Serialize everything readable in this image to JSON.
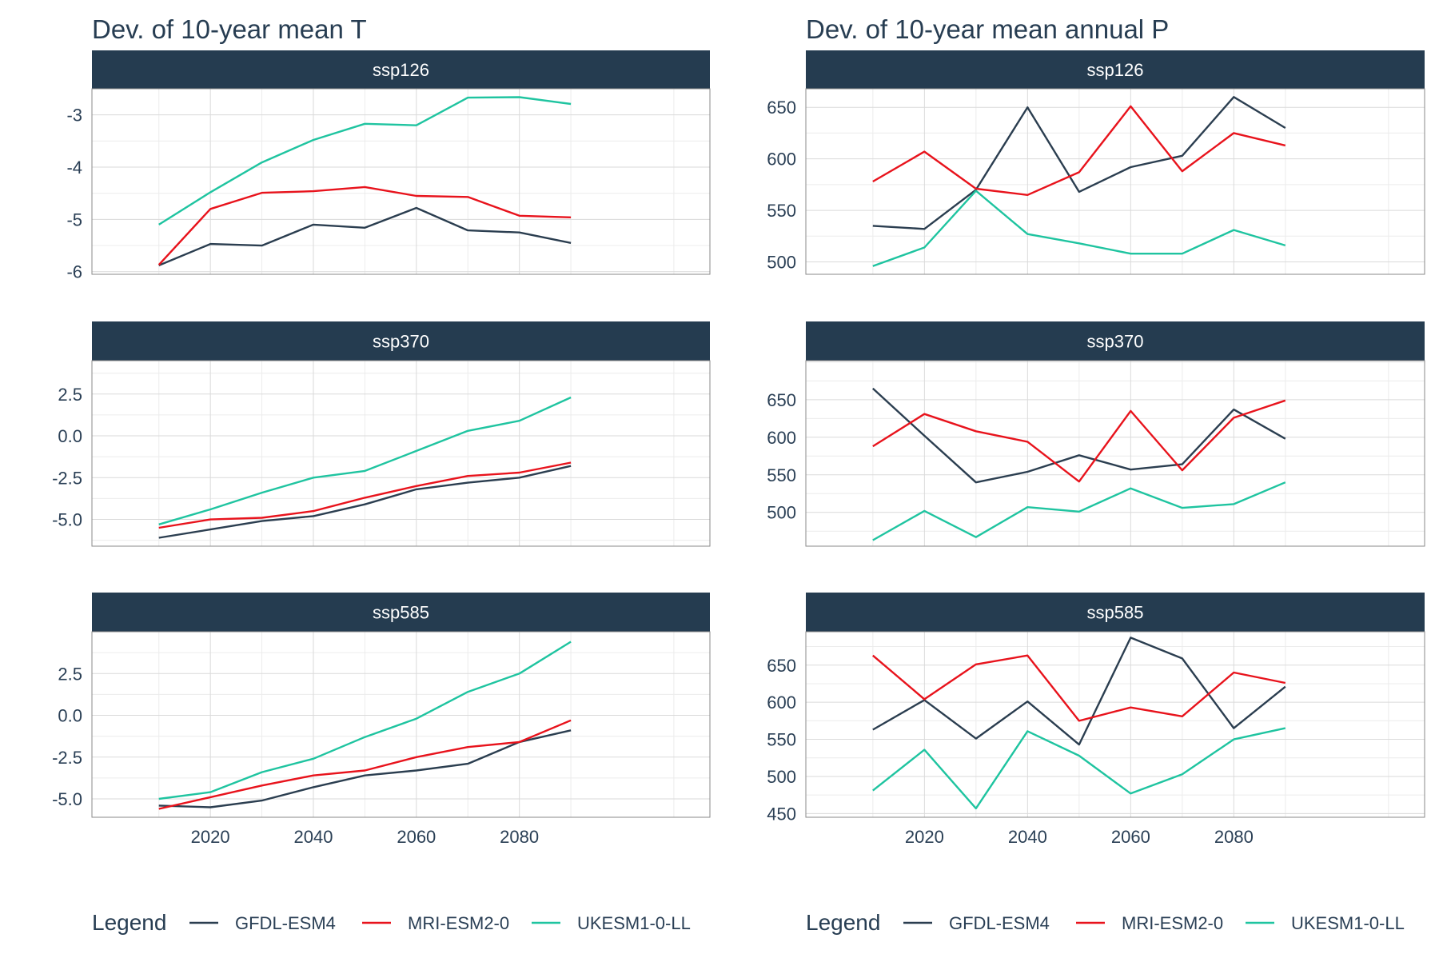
{
  "colors": {
    "GFDL-ESM4": "#2b3e50",
    "MRI-ESM2-0": "#e8131c",
    "UKESM1-0-LL": "#1fc4a0",
    "strip": "#253c50",
    "text": "#273d52"
  },
  "legend": {
    "title": "Legend",
    "items": [
      "GFDL-ESM4",
      "MRI-ESM2-0",
      "UKESM1-0-LL"
    ]
  },
  "chart_data": [
    {
      "type": "line",
      "title": "Dev. of 10-year mean T",
      "x_ticks": [
        2020,
        2040,
        2060,
        2080
      ],
      "x": [
        2010,
        2020,
        2030,
        2040,
        2050,
        2060,
        2070,
        2080,
        2090
      ],
      "xlim": [
        1997,
        2117
      ],
      "panels": [
        {
          "strip": "ssp126",
          "ylim": [
            -6.05,
            -2.5
          ],
          "y_ticks": [
            -6,
            -5,
            -4,
            -3
          ],
          "y_tick_labels": [
            "-6",
            "-5",
            "-4",
            "-3"
          ],
          "series": [
            {
              "name": "GFDL-ESM4",
              "values": [
                -5.88,
                -5.47,
                -5.5,
                -5.1,
                -5.16,
                -4.78,
                -5.21,
                -5.25,
                -5.45
              ]
            },
            {
              "name": "MRI-ESM2-0",
              "values": [
                -5.87,
                -4.8,
                -4.49,
                -4.46,
                -4.38,
                -4.55,
                -4.57,
                -4.93,
                -4.96
              ]
            },
            {
              "name": "UKESM1-0-LL",
              "values": [
                -5.1,
                -4.48,
                -3.91,
                -3.48,
                -3.17,
                -3.2,
                -2.67,
                -2.66,
                -2.79
              ]
            }
          ]
        },
        {
          "strip": "ssp370",
          "ylim": [
            -6.6,
            4.5
          ],
          "y_ticks": [
            -5,
            -2.5,
            0,
            2.5
          ],
          "y_tick_labels": [
            "-5.0",
            "-2.5",
            "0.0",
            "2.5"
          ],
          "series": [
            {
              "name": "GFDL-ESM4",
              "values": [
                -6.1,
                -5.6,
                -5.1,
                -4.8,
                -4.1,
                -3.2,
                -2.8,
                -2.5,
                -1.8
              ]
            },
            {
              "name": "MRI-ESM2-0",
              "values": [
                -5.5,
                -5.0,
                -4.9,
                -4.5,
                -3.7,
                -3.0,
                -2.4,
                -2.2,
                -1.6
              ]
            },
            {
              "name": "UKESM1-0-LL",
              "values": [
                -5.3,
                -4.4,
                -3.4,
                -2.5,
                -2.1,
                -0.9,
                0.3,
                0.9,
                2.3
              ]
            }
          ]
        },
        {
          "strip": "ssp585",
          "ylim": [
            -6.1,
            5.0
          ],
          "y_ticks": [
            -5,
            -2.5,
            0,
            2.5
          ],
          "y_tick_labels": [
            "-5.0",
            "-2.5",
            "0.0",
            "2.5"
          ],
          "series": [
            {
              "name": "GFDL-ESM4",
              "values": [
                -5.4,
                -5.5,
                -5.1,
                -4.3,
                -3.6,
                -3.3,
                -2.9,
                -1.6,
                -0.9
              ]
            },
            {
              "name": "MRI-ESM2-0",
              "values": [
                -5.6,
                -4.9,
                -4.2,
                -3.6,
                -3.3,
                -2.5,
                -1.9,
                -1.6,
                -0.3
              ]
            },
            {
              "name": "UKESM1-0-LL",
              "values": [
                -5.0,
                -4.6,
                -3.4,
                -2.6,
                -1.3,
                -0.2,
                1.4,
                2.5,
                4.4
              ]
            }
          ]
        }
      ]
    },
    {
      "type": "line",
      "title": "Dev. of 10-year mean annual P",
      "x_ticks": [
        2020,
        2040,
        2060,
        2080
      ],
      "x": [
        2010,
        2020,
        2030,
        2040,
        2050,
        2060,
        2070,
        2080,
        2090
      ],
      "xlim": [
        1997,
        2117
      ],
      "panels": [
        {
          "strip": "ssp126",
          "ylim": [
            488,
            668
          ],
          "y_ticks": [
            500,
            550,
            600,
            650
          ],
          "y_tick_labels": [
            "500",
            "550",
            "600",
            "650"
          ],
          "series": [
            {
              "name": "GFDL-ESM4",
              "values": [
                535,
                532,
                570,
                650,
                568,
                592,
                603,
                660,
                630
              ]
            },
            {
              "name": "MRI-ESM2-0",
              "values": [
                578,
                607,
                571,
                565,
                587,
                651,
                588,
                625,
                613
              ]
            },
            {
              "name": "UKESM1-0-LL",
              "values": [
                496,
                514,
                569,
                527,
                518,
                508,
                508,
                531,
                516
              ]
            }
          ]
        },
        {
          "strip": "ssp370",
          "ylim": [
            455,
            702
          ],
          "y_ticks": [
            500,
            550,
            600,
            650
          ],
          "y_tick_labels": [
            "500",
            "550",
            "600",
            "650"
          ],
          "series": [
            {
              "name": "GFDL-ESM4",
              "values": [
                665,
                602,
                540,
                554,
                576,
                557,
                564,
                637,
                598
              ]
            },
            {
              "name": "MRI-ESM2-0",
              "values": [
                588,
                631,
                608,
                594,
                541,
                635,
                556,
                626,
                649
              ]
            },
            {
              "name": "UKESM1-0-LL",
              "values": [
                463,
                502,
                467,
                507,
                501,
                532,
                506,
                511,
                540
              ]
            }
          ]
        },
        {
          "strip": "ssp585",
          "ylim": [
            445,
            695
          ],
          "y_ticks": [
            450,
            500,
            550,
            600,
            650
          ],
          "y_tick_labels": [
            "450",
            "500",
            "550",
            "600",
            "650"
          ],
          "series": [
            {
              "name": "GFDL-ESM4",
              "values": [
                563,
                603,
                551,
                601,
                543,
                687,
                659,
                565,
                621
              ]
            },
            {
              "name": "MRI-ESM2-0",
              "values": [
                663,
                604,
                651,
                663,
                575,
                593,
                581,
                640,
                626
              ]
            },
            {
              "name": "UKESM1-0-LL",
              "values": [
                481,
                536,
                457,
                561,
                528,
                477,
                503,
                550,
                565
              ]
            }
          ]
        }
      ]
    }
  ]
}
